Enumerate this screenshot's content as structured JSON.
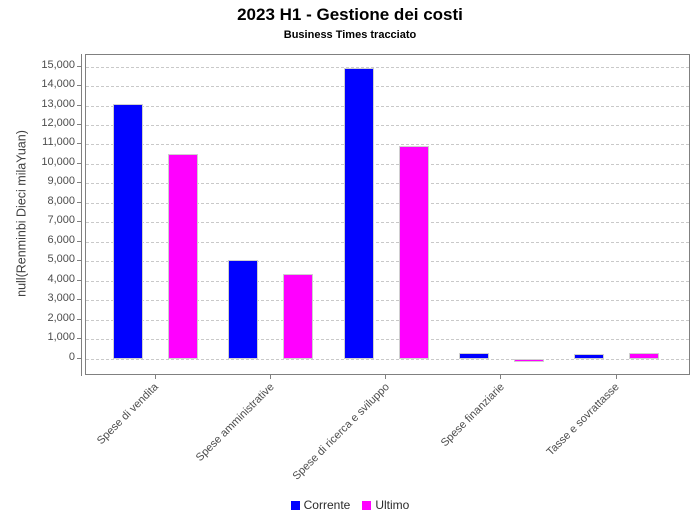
{
  "chart_data": {
    "type": "bar",
    "title": "2023 H1 - Gestione dei costi",
    "subtitle": "Business Times tracciato",
    "xlabel": "",
    "ylabel": "null(Renminbi Dieci milaYuan)",
    "categories": [
      "Spese di vendita",
      "Spese amministrative",
      "Spese di ricerca e sviluppo",
      "Spese finanziarie",
      "Tasse e sovrattasse"
    ],
    "series": [
      {
        "name": "Corrente",
        "color": "#0000ff",
        "values": [
          13100,
          5070,
          14900,
          300,
          270
        ]
      },
      {
        "name": "Ultimo",
        "color": "#ff00ff",
        "values": [
          10500,
          4350,
          10900,
          -150,
          300
        ]
      }
    ],
    "ylim": [
      -770,
      15590
    ],
    "yticks": [
      0,
      1000,
      2000,
      3000,
      4000,
      5000,
      6000,
      7000,
      8000,
      9000,
      10000,
      11000,
      12000,
      13000,
      14000,
      15000
    ],
    "grid": "horizontal-dashed",
    "legend_position": "bottom-center"
  },
  "colors": {
    "corrente": "#0000ff",
    "ultimo": "#ff00ff",
    "grid": "#c9c9c9",
    "axis": "#808080",
    "tick_text": "#4d4d4d"
  }
}
